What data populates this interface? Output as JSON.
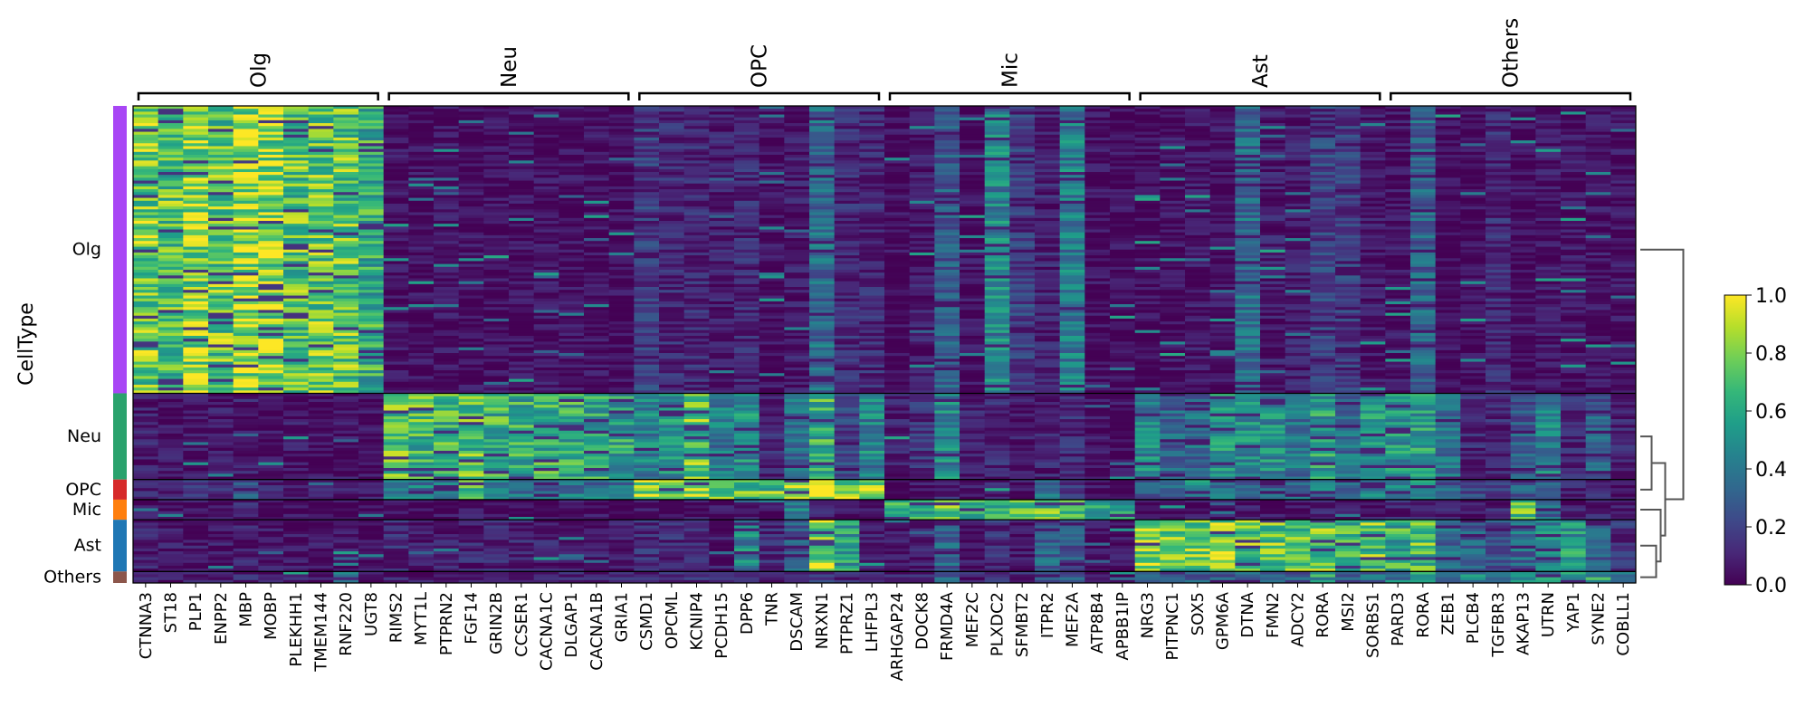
{
  "chart_data": {
    "type": "heatmap",
    "title": "",
    "ylabel": "CellType",
    "xlabel": "",
    "row_groups": [
      {
        "name": "Olg",
        "color": "#a846f5",
        "rows": 100
      },
      {
        "name": "Neu",
        "color": "#2aa26d",
        "rows": 30
      },
      {
        "name": "OPC",
        "color": "#d62a2a",
        "rows": 7
      },
      {
        "name": "Mic",
        "color": "#ff7f0e",
        "rows": 7
      },
      {
        "name": "Ast",
        "color": "#1f77b4",
        "rows": 18
      },
      {
        "name": "Others",
        "color": "#8c564b",
        "rows": 4
      }
    ],
    "gene_groups": [
      {
        "name": "Olg",
        "genes": [
          "CTNNA3",
          "ST18",
          "PLP1",
          "ENPP2",
          "MBP",
          "MOBP",
          "PLEKHH1",
          "TMEM144",
          "RNF220",
          "UGT8"
        ]
      },
      {
        "name": "Neu",
        "genes": [
          "RIMS2",
          "MYT1L",
          "PTPRN2",
          "FGF14",
          "GRIN2B",
          "CCSER1",
          "CACNA1C",
          "DLGAP1",
          "CACNA1B",
          "GRIA1"
        ]
      },
      {
        "name": "OPC",
        "genes": [
          "CSMD1",
          "OPCML",
          "KCNIP4",
          "PCDH15",
          "DPP6",
          "TNR",
          "DSCAM",
          "NRXN1",
          "PTPRZ1",
          "LHFPL3"
        ]
      },
      {
        "name": "Mic",
        "genes": [
          "ARHGAP24",
          "DOCK8",
          "FRMD4A",
          "MEF2C",
          "PLXDC2",
          "SFMBT2",
          "ITPR2",
          "MEF2A",
          "ATP8B4",
          "APBB1IP"
        ]
      },
      {
        "name": "Ast",
        "genes": [
          "NRG3",
          "PITPNC1",
          "SOX5",
          "GPM6A",
          "DTNA",
          "FMN2",
          "ADCY2",
          "RORA",
          "MSI2",
          "SORBS1"
        ]
      },
      {
        "name": "Others",
        "genes": [
          "PARD3",
          "RORA",
          "ZEB1",
          "PLCB4",
          "TGFBR3",
          "AKAP13",
          "UTRN",
          "YAP1",
          "SYNE2",
          "COBLL1"
        ]
      }
    ],
    "colorbar": {
      "colormap": "viridis",
      "range": [
        0.0,
        1.0
      ],
      "ticks": [
        "0.0",
        "0.2",
        "0.4",
        "0.6",
        "0.8",
        "1.0"
      ]
    },
    "colormap_stops": [
      "#440154",
      "#482878",
      "#3e4989",
      "#31688e",
      "#26828e",
      "#1f9e89",
      "#35b779",
      "#6ece58",
      "#b5de2b",
      "#fde725"
    ],
    "group_mean_expression": {
      "Olg": [
        0.78,
        0.72,
        0.82,
        0.75,
        0.88,
        0.83,
        0.72,
        0.74,
        0.73,
        0.62,
        0.05,
        0.04,
        0.05,
        0.04,
        0.04,
        0.04,
        0.05,
        0.04,
        0.04,
        0.03,
        0.18,
        0.12,
        0.12,
        0.08,
        0.12,
        0.04,
        0.07,
        0.35,
        0.12,
        0.12,
        0.03,
        0.08,
        0.28,
        0.04,
        0.45,
        0.2,
        0.1,
        0.42,
        0.04,
        0.03,
        0.03,
        0.05,
        0.06,
        0.05,
        0.35,
        0.08,
        0.08,
        0.2,
        0.18,
        0.06,
        0.05,
        0.32,
        0.03,
        0.03,
        0.12,
        0.04,
        0.06,
        0.05,
        0.05,
        0.05
      ],
      "Neu": [
        0.08,
        0.06,
        0.06,
        0.06,
        0.08,
        0.05,
        0.06,
        0.05,
        0.05,
        0.04,
        0.7,
        0.68,
        0.66,
        0.7,
        0.64,
        0.6,
        0.62,
        0.6,
        0.58,
        0.56,
        0.45,
        0.5,
        0.72,
        0.4,
        0.48,
        0.12,
        0.35,
        0.62,
        0.2,
        0.45,
        0.08,
        0.15,
        0.45,
        0.1,
        0.12,
        0.06,
        0.1,
        0.12,
        0.05,
        0.04,
        0.45,
        0.32,
        0.35,
        0.5,
        0.5,
        0.48,
        0.38,
        0.55,
        0.35,
        0.5,
        0.5,
        0.55,
        0.35,
        0.12,
        0.12,
        0.28,
        0.45,
        0.12,
        0.3,
        0.1
      ],
      "OPC": [
        0.12,
        0.12,
        0.15,
        0.12,
        0.3,
        0.1,
        0.1,
        0.08,
        0.08,
        0.06,
        0.45,
        0.42,
        0.4,
        0.62,
        0.4,
        0.4,
        0.35,
        0.4,
        0.38,
        0.4,
        0.85,
        0.8,
        0.78,
        0.75,
        0.7,
        0.72,
        0.75,
        0.85,
        0.82,
        0.8,
        0.04,
        0.06,
        0.12,
        0.06,
        0.08,
        0.05,
        0.35,
        0.2,
        0.04,
        0.04,
        0.25,
        0.3,
        0.45,
        0.35,
        0.3,
        0.28,
        0.3,
        0.5,
        0.3,
        0.4,
        0.45,
        0.5,
        0.3,
        0.2,
        0.15,
        0.3,
        0.3,
        0.1,
        0.2,
        0.05
      ],
      "Mic": [
        0.05,
        0.05,
        0.04,
        0.04,
        0.1,
        0.04,
        0.04,
        0.04,
        0.04,
        0.03,
        0.04,
        0.04,
        0.04,
        0.05,
        0.04,
        0.04,
        0.04,
        0.04,
        0.04,
        0.04,
        0.05,
        0.05,
        0.05,
        0.05,
        0.05,
        0.04,
        0.4,
        0.1,
        0.05,
        0.05,
        0.72,
        0.68,
        0.7,
        0.64,
        0.72,
        0.66,
        0.7,
        0.68,
        0.62,
        0.64,
        0.05,
        0.05,
        0.05,
        0.06,
        0.06,
        0.05,
        0.06,
        0.1,
        0.06,
        0.06,
        0.1,
        0.1,
        0.1,
        0.06,
        0.1,
        0.75,
        0.35,
        0.08,
        0.1,
        0.05
      ],
      "Ast": [
        0.1,
        0.06,
        0.06,
        0.06,
        0.08,
        0.06,
        0.05,
        0.05,
        0.05,
        0.04,
        0.12,
        0.08,
        0.08,
        0.1,
        0.1,
        0.1,
        0.08,
        0.08,
        0.08,
        0.08,
        0.15,
        0.12,
        0.1,
        0.08,
        0.45,
        0.12,
        0.3,
        0.85,
        0.55,
        0.08,
        0.06,
        0.08,
        0.3,
        0.06,
        0.15,
        0.06,
        0.35,
        0.25,
        0.06,
        0.05,
        0.78,
        0.75,
        0.72,
        0.8,
        0.72,
        0.74,
        0.7,
        0.75,
        0.7,
        0.72,
        0.62,
        0.7,
        0.35,
        0.3,
        0.25,
        0.35,
        0.45,
        0.55,
        0.3,
        0.15
      ],
      "Others": [
        0.12,
        0.08,
        0.08,
        0.1,
        0.1,
        0.08,
        0.08,
        0.06,
        0.55,
        0.06,
        0.1,
        0.08,
        0.12,
        0.1,
        0.1,
        0.12,
        0.1,
        0.1,
        0.1,
        0.1,
        0.12,
        0.1,
        0.12,
        0.1,
        0.12,
        0.1,
        0.1,
        0.15,
        0.12,
        0.1,
        0.1,
        0.12,
        0.3,
        0.1,
        0.2,
        0.1,
        0.3,
        0.25,
        0.1,
        0.08,
        0.25,
        0.25,
        0.3,
        0.3,
        0.3,
        0.3,
        0.3,
        0.55,
        0.3,
        0.35,
        0.45,
        0.65,
        0.45,
        0.45,
        0.4,
        0.45,
        0.5,
        0.5,
        0.55,
        0.5
      ]
    },
    "dendrogram": {
      "leaves": [
        "Olg",
        "Neu",
        "OPC",
        "Mic",
        "Ast",
        "Others"
      ],
      "merges": [
        {
          "a": "Neu",
          "b": "OPC",
          "height": 0.25
        },
        {
          "a": "Ast",
          "b": "Others",
          "height": 0.35
        },
        {
          "a": "Mic",
          "b": "Ast+Others",
          "height": 0.45
        },
        {
          "a": "Neu+OPC",
          "b": "Mic+Ast+Others",
          "height": 0.55
        },
        {
          "a": "Olg",
          "b": "Neu+OPC+Mic+Ast+Others",
          "height": 0.95
        }
      ]
    }
  }
}
